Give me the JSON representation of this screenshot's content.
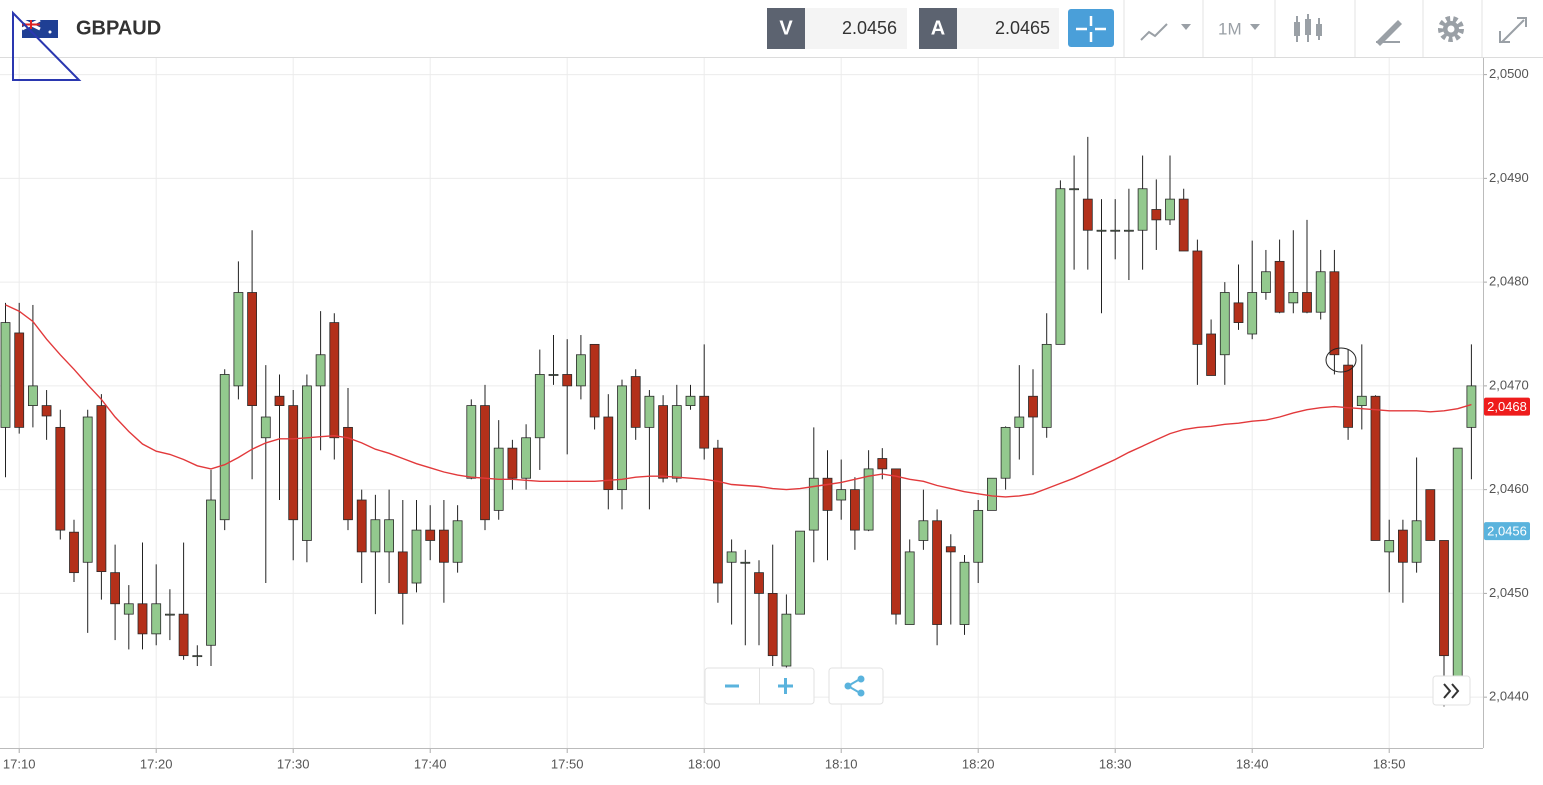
{
  "toolbar": {
    "symbol": "GBPAUD",
    "bid_label": "V",
    "bid": "2.0456",
    "ask_label": "A",
    "ask": "2.0465",
    "timeframe": "1M"
  },
  "chart_data": {
    "type": "candlestick",
    "categories": [
      null,
      "17:10",
      null,
      null,
      null,
      null,
      null,
      null,
      null,
      null,
      null,
      "17:20",
      null,
      null,
      null,
      null,
      null,
      null,
      null,
      null,
      null,
      "17:30",
      null,
      null,
      null,
      null,
      null,
      null,
      null,
      null,
      null,
      "17:40",
      null,
      null,
      null,
      null,
      null,
      null,
      null,
      null,
      null,
      "17:50",
      null,
      null,
      null,
      null,
      null,
      null,
      null,
      null,
      null,
      "18:00",
      null,
      null,
      null,
      null,
      null,
      null,
      null,
      null,
      null,
      "18:10",
      null,
      null,
      null,
      null,
      null,
      null,
      null,
      null,
      null,
      "18:20",
      null,
      null,
      null,
      null,
      null,
      null,
      null,
      null,
      null,
      "18:30",
      null,
      null,
      null,
      null,
      null,
      null,
      null,
      null,
      null,
      "18:40",
      null,
      null,
      null,
      null,
      null,
      null,
      null,
      null,
      null,
      "18:50",
      null,
      null,
      null,
      null,
      null,
      null
    ],
    "open": [
      2.0466,
      2.04751,
      2.04681,
      2.04681,
      2.0466,
      2.04559,
      2.0453,
      2.04681,
      2.0452,
      2.0448,
      2.0449,
      2.04461,
      2.0448,
      2.0448,
      2.0444,
      2.0445,
      2.04571,
      2.047,
      2.0479,
      2.0465,
      2.0469,
      2.04681,
      2.04551,
      2.047,
      2.04761,
      2.0466,
      2.0459,
      2.0454,
      2.0454,
      2.0454,
      2.0451,
      2.04561,
      2.04561,
      2.0453,
      2.04611,
      2.04681,
      2.0458,
      2.0464,
      2.04611,
      2.0465,
      2.04711,
      2.04711,
      2.047,
      2.0474,
      2.0467,
      2.046,
      2.04709,
      2.0466,
      2.04681,
      2.04611,
      2.04681,
      2.0469,
      2.0464,
      2.0453,
      2.0453,
      2.0452,
      2.045,
      2.0443,
      2.0448,
      2.04561,
      2.04611,
      2.0459,
      2.046,
      2.04561,
      2.0463,
      2.0462,
      2.0447,
      2.04551,
      2.0457,
      2.04545,
      2.0447,
      2.0453,
      2.0458,
      2.04611,
      2.0466,
      2.0469,
      2.0466,
      2.0474,
      2.0489,
      2.0488,
      2.0485,
      2.0485,
      2.0485,
      2.0485,
      2.0487,
      2.0486,
      2.0488,
      2.0483,
      2.0475,
      2.0473,
      2.0478,
      2.0475,
      2.0479,
      2.0482,
      2.0478,
      2.0479,
      2.04771,
      2.0481,
      2.0472,
      2.04681,
      2.0469,
      2.0454,
      2.04561,
      2.0453,
      2.046,
      2.04551,
      2.0442,
      2.0466
    ],
    "high": [
      2.0478,
      2.0478,
      2.04778,
      2.04696,
      2.04677,
      2.04571,
      2.04677,
      2.04692,
      2.04547,
      2.04508,
      2.04549,
      2.04528,
      2.04504,
      2.04549,
      2.0445,
      2.04619,
      2.04716,
      2.0482,
      2.0485,
      2.0472,
      2.04711,
      2.04696,
      2.04711,
      2.04772,
      2.0477,
      2.04698,
      2.046,
      2.04595,
      2.046,
      2.0459,
      2.0459,
      2.04585,
      2.0459,
      2.04585,
      2.04687,
      2.04701,
      2.04667,
      2.04648,
      2.04663,
      2.04735,
      2.04749,
      2.04745,
      2.04749,
      2.0474,
      2.04692,
      2.04706,
      2.04716,
      2.04696,
      2.04691,
      2.04701,
      2.04701,
      2.0474,
      2.04648,
      2.04552,
      2.04542,
      2.04532,
      2.04547,
      2.04499,
      2.0456,
      2.0466,
      2.04638,
      2.04629,
      2.04612,
      2.04638,
      2.0464,
      2.0462,
      2.04552,
      2.046,
      2.04581,
      2.04557,
      2.04537,
      2.0459,
      2.04611,
      2.04661,
      2.0472,
      2.04716,
      2.0477,
      2.04898,
      2.04922,
      2.0494,
      2.0488,
      2.0488,
      2.0489,
      2.04922,
      2.04899,
      2.04922,
      2.0489,
      2.04841,
      2.04764,
      2.048,
      2.04817,
      2.0484,
      2.04831,
      2.04841,
      2.0485,
      2.0486,
      2.04831,
      2.04831,
      2.04735,
      2.0474,
      2.04691,
      2.04571,
      2.04571,
      2.04631,
      2.046,
      2.04551,
      2.0464,
      2.0474
    ],
    "low": [
      2.04612,
      2.04654,
      2.0466,
      2.04648,
      2.04552,
      2.04511,
      2.04462,
      2.04494,
      2.04455,
      2.04446,
      2.04446,
      2.0445,
      2.04455,
      2.04436,
      2.0443,
      2.0443,
      2.04561,
      2.04687,
      2.0461,
      2.0451,
      2.0459,
      2.04532,
      2.0453,
      2.04638,
      2.04629,
      2.04561,
      2.0451,
      2.0448,
      2.0451,
      2.0447,
      2.04501,
      2.04532,
      2.04491,
      2.0452,
      2.0461,
      2.04561,
      2.04571,
      2.046,
      2.046,
      2.04619,
      2.04701,
      2.04634,
      2.04687,
      2.04658,
      2.04581,
      2.04581,
      2.04648,
      2.04581,
      2.04607,
      2.04607,
      2.04677,
      2.04629,
      2.04491,
      2.0447,
      2.0445,
      2.0445,
      2.0443,
      2.04421,
      2.0448,
      2.0453,
      2.04532,
      2.04571,
      2.04542,
      2.0456,
      2.0461,
      2.0447,
      2.0447,
      2.04542,
      2.0445,
      2.0447,
      2.0446,
      2.0451,
      2.04581,
      2.046,
      2.04629,
      2.04614,
      2.0465,
      2.0474,
      2.04812,
      2.04812,
      2.0477,
      2.04822,
      2.04802,
      2.04812,
      2.04831,
      2.04855,
      2.0483,
      2.04701,
      2.0471,
      2.04701,
      2.04754,
      2.04745,
      2.04783,
      2.0477,
      2.0477,
      2.0477,
      2.04764,
      2.04711,
      2.04648,
      2.04658,
      2.04551,
      2.04501,
      2.04491,
      2.0452,
      2.04551,
      2.04391,
      2.04417,
      2.0461
    ],
    "close": [
      2.04761,
      2.0466,
      2.047,
      2.04671,
      2.04561,
      2.0452,
      2.0467,
      2.04521,
      2.0449,
      2.0449,
      2.04461,
      2.0449,
      2.0448,
      2.0444,
      2.0444,
      2.0459,
      2.04711,
      2.0479,
      2.04681,
      2.0467,
      2.04681,
      2.04571,
      2.047,
      2.0473,
      2.0465,
      2.04571,
      2.0454,
      2.04571,
      2.04571,
      2.045,
      2.04561,
      2.04551,
      2.0453,
      2.0457,
      2.04681,
      2.04571,
      2.0464,
      2.04611,
      2.0465,
      2.04711,
      2.04711,
      2.047,
      2.0473,
      2.0467,
      2.046,
      2.047,
      2.0466,
      2.0469,
      2.04611,
      2.04681,
      2.0469,
      2.0464,
      2.0451,
      2.0454,
      2.0453,
      2.045,
      2.0444,
      2.0448,
      2.0456,
      2.04611,
      2.0458,
      2.046,
      2.04561,
      2.0462,
      2.0462,
      2.0448,
      2.0454,
      2.0457,
      2.0447,
      2.0454,
      2.0453,
      2.0458,
      2.04611,
      2.0466,
      2.0467,
      2.0467,
      2.0474,
      2.0489,
      2.0489,
      2.0485,
      2.0485,
      2.0485,
      2.0485,
      2.0489,
      2.0486,
      2.0488,
      2.0483,
      2.0474,
      2.0471,
      2.0479,
      2.04761,
      2.0479,
      2.0481,
      2.04771,
      2.0479,
      2.04771,
      2.0481,
      2.0473,
      2.0466,
      2.0469,
      2.04551,
      2.04551,
      2.0453,
      2.0457,
      2.04551,
      2.0444,
      2.0464,
      2.047
    ],
    "up_color": "#93c98e",
    "down_color": "#b3301a",
    "moving_average": {
      "color": "#e2393b",
      "values": [
        2.04778,
        2.04772,
        2.04762,
        2.04745,
        2.0473,
        2.04716,
        2.04701,
        2.04687,
        2.0467,
        2.04656,
        2.04644,
        2.04637,
        2.04634,
        2.04629,
        2.04623,
        2.0462,
        2.04624,
        2.04631,
        2.04639,
        2.04645,
        2.04649,
        2.04649,
        2.0465,
        2.04651,
        2.04652,
        2.0465,
        2.04645,
        2.04639,
        2.04635,
        2.0463,
        2.04625,
        2.04621,
        2.04617,
        2.04614,
        2.04612,
        2.04611,
        2.0461,
        2.0461,
        2.04609,
        2.04608,
        2.04608,
        2.04608,
        2.04608,
        2.04608,
        2.04609,
        2.0461,
        2.04612,
        2.04613,
        2.04613,
        2.04612,
        2.04611,
        2.0461,
        2.04608,
        2.04605,
        2.04604,
        2.04603,
        2.04601,
        2.046,
        2.04601,
        2.04603,
        2.04605,
        2.04607,
        2.0461,
        2.04613,
        2.04615,
        2.04613,
        2.0461,
        2.04608,
        2.04604,
        2.04601,
        2.04598,
        2.04596,
        2.04594,
        2.04593,
        2.04594,
        2.04596,
        2.04601,
        2.04606,
        2.04611,
        2.04617,
        2.04623,
        2.04629,
        2.04636,
        2.04642,
        2.04648,
        2.04654,
        2.04658,
        2.0466,
        2.04661,
        2.04663,
        2.04664,
        2.04666,
        2.04667,
        2.0467,
        2.04674,
        2.04677,
        2.04679,
        2.0468,
        2.04679,
        2.04678,
        2.04677,
        2.04676,
        2.04676,
        2.04676,
        2.04675,
        2.04676,
        2.04678,
        2.04682
      ]
    },
    "price_tags": [
      {
        "value": 2.0468,
        "label": "2,0468",
        "color": "#ee1c1c"
      },
      {
        "value": 2.0456,
        "label": "2,0456",
        "color": "#5ab3dd"
      }
    ],
    "ylim": [
      2.04351,
      2.05016
    ],
    "yticks": [
      {
        "value": 2.044,
        "label": "2,0440"
      },
      {
        "value": 2.045,
        "label": "2,0450"
      },
      {
        "value": 2.046,
        "label": "2,0460"
      },
      {
        "value": 2.047,
        "label": "2,0470"
      },
      {
        "value": 2.048,
        "label": "2,0480"
      },
      {
        "value": 2.049,
        "label": "2,0490"
      },
      {
        "value": 2.05,
        "label": "2,0500"
      }
    ],
    "grid": true
  }
}
